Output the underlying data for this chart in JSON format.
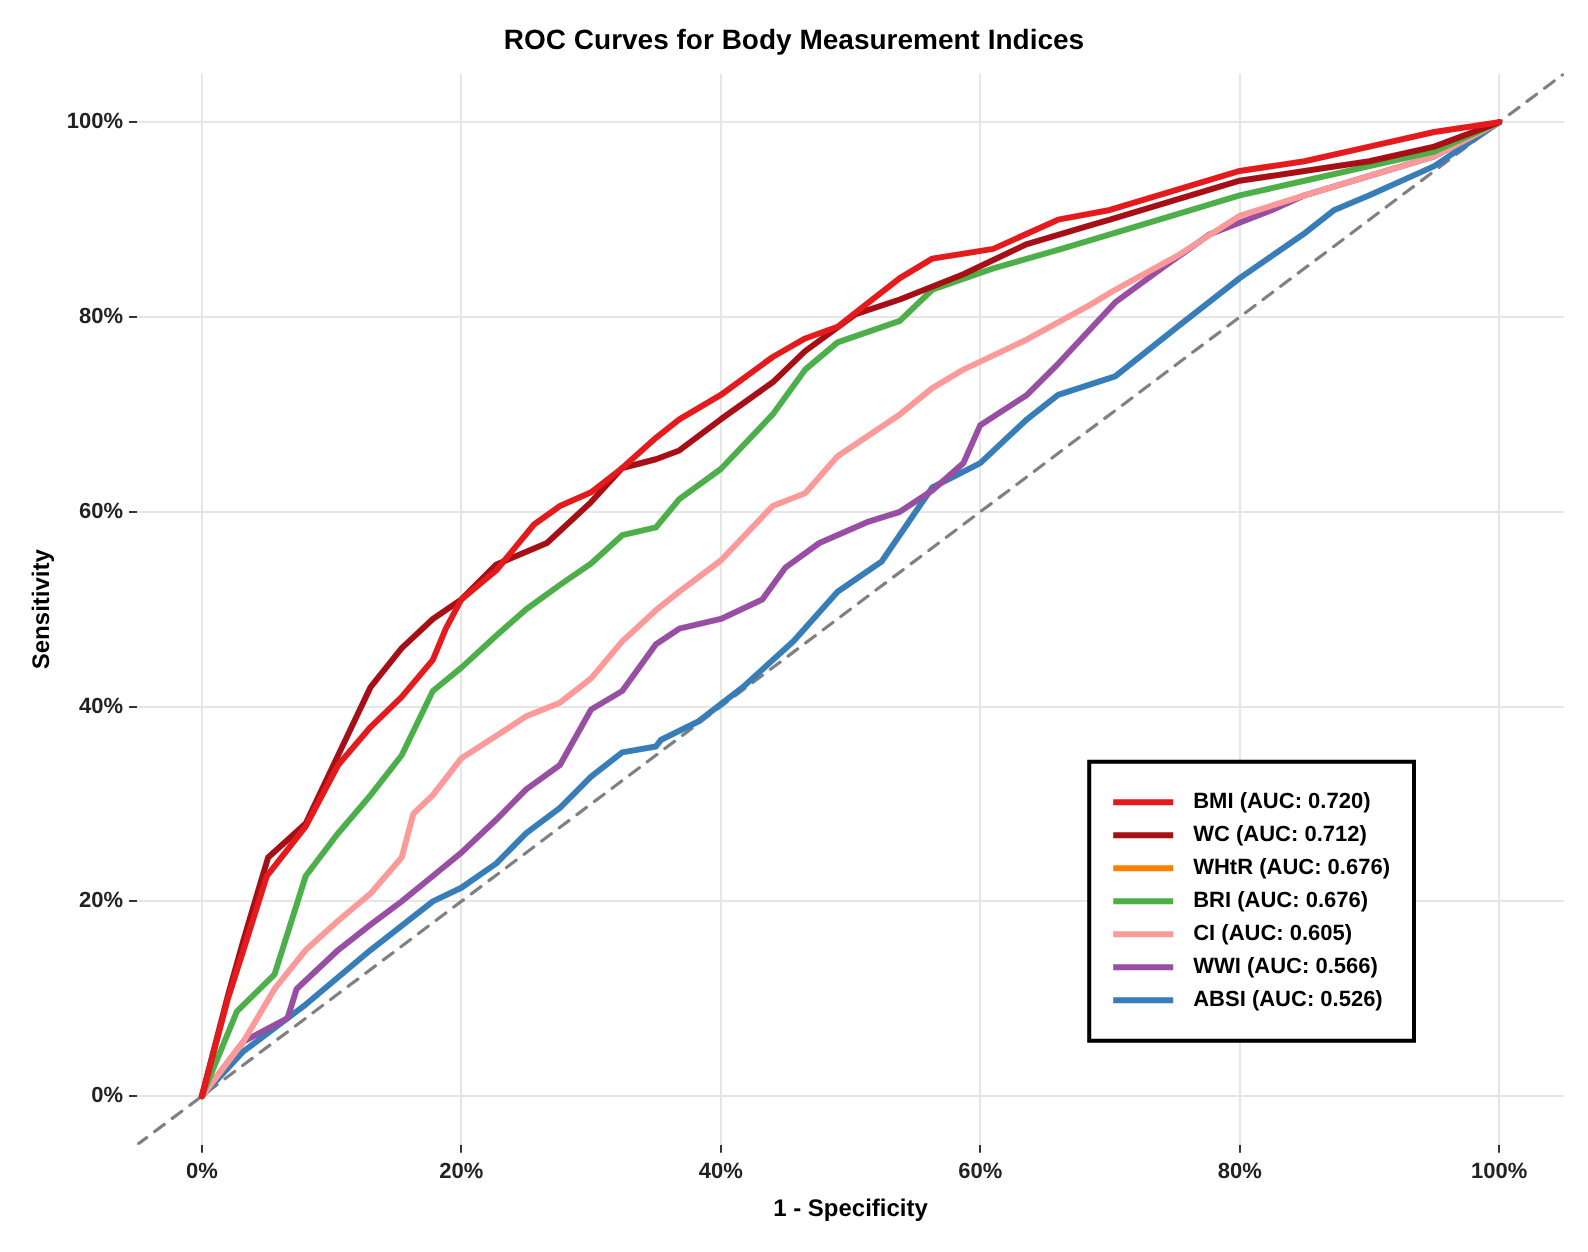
{
  "chart_data": {
    "type": "line",
    "title": "ROC Curves for Body Measurement Indices",
    "xlabel": "1 - Specificity",
    "ylabel": "Sensitivity",
    "xlim": [
      -5,
      105
    ],
    "ylim": [
      -5,
      105
    ],
    "xticks": [
      {
        "value": 0,
        "label": "0%"
      },
      {
        "value": 20,
        "label": "20%"
      },
      {
        "value": 40,
        "label": "40%"
      },
      {
        "value": 60,
        "label": "60%"
      },
      {
        "value": 80,
        "label": "80%"
      },
      {
        "value": 100,
        "label": "100%"
      }
    ],
    "yticks": [
      {
        "value": 0,
        "label": "0%"
      },
      {
        "value": 20,
        "label": "20%"
      },
      {
        "value": 40,
        "label": "40%"
      },
      {
        "value": 60,
        "label": "60%"
      },
      {
        "value": 80,
        "label": "80%"
      },
      {
        "value": 100,
        "label": "100%"
      }
    ],
    "grid": true,
    "legend": "bottom right",
    "marker": "none",
    "series": [
      {
        "name": "BMI (AUC: 0.720)",
        "color": "#e41a1c",
        "line_style": "solid",
        "x": [
          0,
          2,
          3.2,
          5,
          8,
          10.5,
          13,
          15.4,
          17.8,
          18.8,
          20,
          22.7,
          25.6,
          27.6,
          30,
          32.4,
          35,
          36.8,
          40,
          44,
          46.5,
          49,
          51.4,
          53.8,
          56.3,
          61,
          66,
          70,
          75,
          80,
          85,
          90,
          95,
          100
        ],
        "values": [
          0,
          10,
          15,
          22.6,
          27.7,
          34,
          37.9,
          41,
          44.8,
          48,
          51,
          54,
          58.7,
          60.6,
          62,
          64.5,
          67.6,
          69.5,
          72,
          75.9,
          77.8,
          79,
          81.5,
          84,
          86,
          87,
          90,
          91,
          93,
          95,
          96,
          97.5,
          99,
          100
        ]
      },
      {
        "name": "WC (AUC: 0.712)",
        "color": "#a50f15",
        "line_style": "solid",
        "x": [
          0,
          2,
          3.2,
          5.1,
          8,
          10.5,
          13,
          15.4,
          17.8,
          20,
          22.7,
          26.6,
          30,
          32.4,
          35,
          36.8,
          40,
          44,
          46.5,
          50.4,
          53.8,
          58.7,
          63.6,
          68.4,
          70,
          75,
          80,
          85,
          90,
          95,
          100
        ],
        "values": [
          0,
          10.3,
          16,
          24.5,
          28,
          35,
          42,
          46,
          49,
          51,
          54.6,
          56.8,
          61,
          64.5,
          65.4,
          66.3,
          69.5,
          73.3,
          76.5,
          80.3,
          81.8,
          84.4,
          87.5,
          89.4,
          90,
          92,
          94,
          95,
          96,
          97.5,
          100
        ]
      },
      {
        "name": "WHtR (AUC: 0.676)",
        "color": "#ff7f00",
        "line_style": "solid"
      },
      {
        "name": "BRI (AUC: 0.676)",
        "color": "#4daf4a",
        "line_style": "solid",
        "x": [
          0,
          2.7,
          5.6,
          8,
          10.5,
          13,
          15.4,
          17.8,
          20,
          22.7,
          25,
          27.6,
          30,
          32.4,
          35,
          36.8,
          40,
          44,
          46.5,
          49,
          53.8,
          56.3,
          61,
          66,
          70,
          75,
          80,
          85,
          90,
          95,
          100
        ],
        "values": [
          0,
          8.7,
          12.5,
          22.6,
          27,
          30.9,
          35,
          41.6,
          44,
          47.3,
          50,
          52.5,
          54.7,
          57.6,
          58.4,
          61.3,
          64.4,
          70,
          74.6,
          77.4,
          79.6,
          82.8,
          85,
          86.9,
          88.5,
          90.5,
          92.5,
          94,
          95.5,
          97,
          100
        ]
      },
      {
        "name": "CI (AUC: 0.605)",
        "color": "#fb9a99",
        "line_style": "solid",
        "x": [
          0,
          3.2,
          5.6,
          8,
          10.5,
          13,
          15.4,
          16.3,
          17.8,
          20,
          22.7,
          25,
          27.6,
          30,
          32.4,
          35,
          36.8,
          40,
          44,
          46.5,
          49,
          53.8,
          56.3,
          58.7,
          63.6,
          68.4,
          70.4,
          75.2,
          80,
          85,
          90,
          95,
          100
        ],
        "values": [
          0,
          5.6,
          11,
          15,
          18,
          20.8,
          24.5,
          29,
          30.9,
          34.7,
          37,
          39,
          40.4,
          42.9,
          46.7,
          49.9,
          51.8,
          55,
          60.6,
          61.9,
          65.7,
          70,
          72.7,
          74.6,
          77.7,
          81.2,
          82.8,
          86.3,
          90.4,
          92.5,
          94.5,
          96.5,
          100
        ]
      },
      {
        "name": "WWI (AUC: 0.566)",
        "color": "#984ea3",
        "line_style": "solid",
        "x": [
          0,
          3.2,
          6.6,
          7.3,
          10.5,
          13,
          15.4,
          17.8,
          20,
          22.7,
          25,
          27.6,
          30,
          32.4,
          35,
          36.8,
          40,
          43.2,
          45,
          47.6,
          51.4,
          53.8,
          56.3,
          58.7,
          60,
          63.6,
          66,
          70.4,
          74.3,
          77.7,
          82.5,
          85,
          90,
          95,
          100
        ],
        "values": [
          0,
          5.6,
          8,
          11,
          15,
          17.6,
          20,
          22.6,
          25,
          28.4,
          31.5,
          34,
          39.7,
          41.6,
          46.4,
          48,
          49,
          51,
          54.3,
          56.8,
          59,
          60,
          62.2,
          65,
          68.9,
          72,
          75.2,
          81.5,
          85.3,
          88.5,
          91,
          92.5,
          94.5,
          96.5,
          100
        ]
      },
      {
        "name": "ABSI (AUC: 0.526)",
        "color": "#377eb8",
        "line_style": "solid",
        "x": [
          0,
          3.2,
          8,
          13,
          17.8,
          20,
          22.7,
          25,
          27.6,
          30,
          32.4,
          35,
          35.4,
          38.3,
          41.7,
          45.6,
          49,
          52.4,
          56.3,
          60,
          63.6,
          66,
          70.4,
          75.2,
          80,
          84.9,
          87.3,
          90,
          95,
          100
        ],
        "values": [
          0,
          4.6,
          9.4,
          15,
          20,
          21.4,
          23.9,
          27,
          29.6,
          32.8,
          35.3,
          35.9,
          36.6,
          38.5,
          42,
          46.7,
          51.8,
          54.9,
          62.5,
          65,
          69.5,
          72,
          73.9,
          79,
          84,
          88.5,
          91,
          92.5,
          95.5,
          100
        ]
      },
      {
        "type": "line",
        "color": "#808080",
        "line_style": "dashed",
        "x": [
          -5,
          105
        ],
        "values": [
          -5,
          105
        ]
      }
    ]
  }
}
